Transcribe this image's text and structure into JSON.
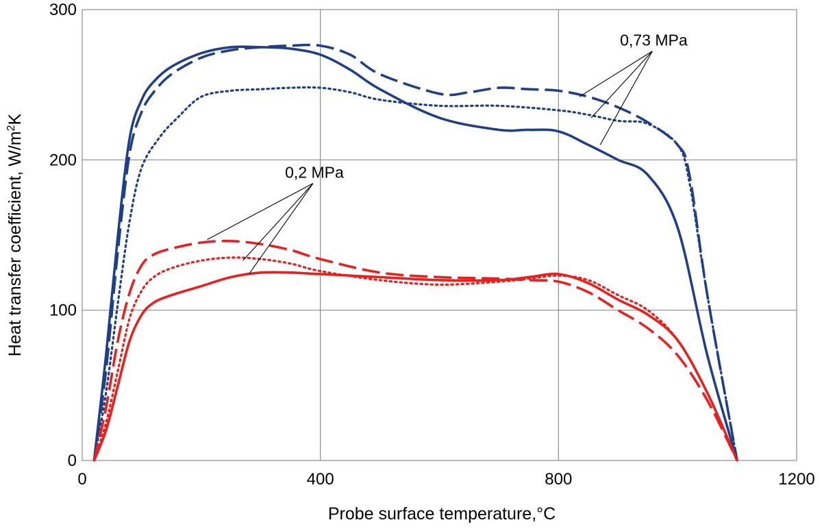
{
  "chart_data": {
    "type": "line",
    "title": "",
    "xlabel": "Probe surface temperature,°C",
    "ylabel_main": "Heat transfer coefficient,  W/m",
    "ylabel_sup": "2",
    "ylabel_tail": "K",
    "xlim": [
      0,
      1200
    ],
    "ylim": [
      0,
      300
    ],
    "x_ticks": [
      "0",
      "400",
      "800",
      "1200"
    ],
    "y_ticks": [
      "0",
      "100",
      "200",
      "300"
    ],
    "grid": true,
    "legend": "none",
    "colors": {
      "blue": "#1f3f86",
      "red": "#e8201e",
      "grid": "#8c8c8c",
      "annotation": "#000000"
    },
    "annotations": [
      {
        "text": "0,73 MPa",
        "x": 960,
        "y": 276,
        "targets": [
          [
            835,
            242
          ],
          [
            855,
            228
          ],
          [
            870,
            210
          ]
        ]
      },
      {
        "text": "0,2 MPa",
        "x": 390,
        "y": 188,
        "targets": [
          [
            210,
            147
          ],
          [
            270,
            133
          ],
          [
            280,
            124
          ]
        ]
      }
    ],
    "series": [
      {
        "group": "0,73 MPa",
        "style": "solid",
        "color": "blue",
        "x": [
          20,
          40,
          60,
          80,
          100,
          120,
          150,
          200,
          250,
          300,
          350,
          400,
          450,
          500,
          600,
          700,
          750,
          800,
          850,
          900,
          950,
          1000,
          1050,
          1100
        ],
        "y": [
          0,
          70,
          150,
          215,
          240,
          252,
          262,
          271,
          275,
          275,
          274,
          270,
          260,
          247,
          228,
          220,
          220,
          219,
          210,
          200,
          190,
          155,
          70,
          0
        ]
      },
      {
        "group": "0,73 MPa",
        "style": "dashed",
        "color": "blue",
        "x": [
          20,
          40,
          60,
          80,
          100,
          120,
          150,
          200,
          250,
          300,
          350,
          400,
          450,
          500,
          600,
          650,
          700,
          750,
          800,
          850,
          900,
          950,
          1000,
          1020,
          1050,
          1100
        ],
        "y": [
          0,
          60,
          140,
          205,
          232,
          245,
          257,
          268,
          273,
          275,
          276,
          276,
          270,
          257,
          244,
          245,
          248,
          247,
          246,
          242,
          235,
          225,
          210,
          190,
          110,
          0
        ]
      },
      {
        "group": "0,73 MPa",
        "style": "dotted",
        "color": "blue",
        "x": [
          20,
          40,
          60,
          80,
          100,
          130,
          160,
          200,
          250,
          300,
          350,
          400,
          450,
          500,
          600,
          700,
          800,
          850,
          900,
          950,
          1000,
          1020,
          1050,
          1100
        ],
        "y": [
          0,
          45,
          105,
          160,
          195,
          215,
          228,
          242,
          246,
          247,
          248,
          248,
          245,
          240,
          236,
          236,
          233,
          230,
          226,
          224,
          210,
          185,
          110,
          0
        ]
      },
      {
        "group": "0,2 MPa",
        "style": "solid",
        "color": "red",
        "x": [
          20,
          40,
          60,
          80,
          100,
          120,
          150,
          200,
          250,
          300,
          350,
          400,
          500,
          600,
          700,
          750,
          800,
          850,
          900,
          950,
          1000,
          1050,
          1100
        ],
        "y": [
          0,
          20,
          50,
          80,
          97,
          105,
          110,
          116,
          122,
          125,
          125,
          124,
          122,
          120,
          120,
          122,
          124,
          118,
          107,
          97,
          80,
          45,
          0
        ]
      },
      {
        "group": "0,2 MPa",
        "style": "dashed",
        "color": "red",
        "x": [
          20,
          40,
          60,
          80,
          100,
          120,
          150,
          200,
          250,
          300,
          350,
          400,
          500,
          600,
          700,
          750,
          800,
          850,
          900,
          950,
          1000,
          1050,
          1100
        ],
        "y": [
          0,
          35,
          80,
          112,
          130,
          137,
          141,
          145,
          146,
          144,
          140,
          134,
          125,
          122,
          121,
          120,
          119,
          112,
          100,
          88,
          70,
          40,
          0
        ]
      },
      {
        "group": "0,2 MPa",
        "style": "dotted",
        "color": "red",
        "x": [
          20,
          40,
          60,
          80,
          100,
          120,
          150,
          200,
          250,
          300,
          350,
          400,
          500,
          600,
          700,
          750,
          800,
          850,
          900,
          950,
          1000,
          1050,
          1100
        ],
        "y": [
          0,
          25,
          60,
          95,
          113,
          122,
          128,
          133,
          135,
          134,
          131,
          126,
          120,
          117,
          119,
          121,
          123,
          120,
          110,
          100,
          80,
          45,
          0
        ]
      }
    ]
  }
}
